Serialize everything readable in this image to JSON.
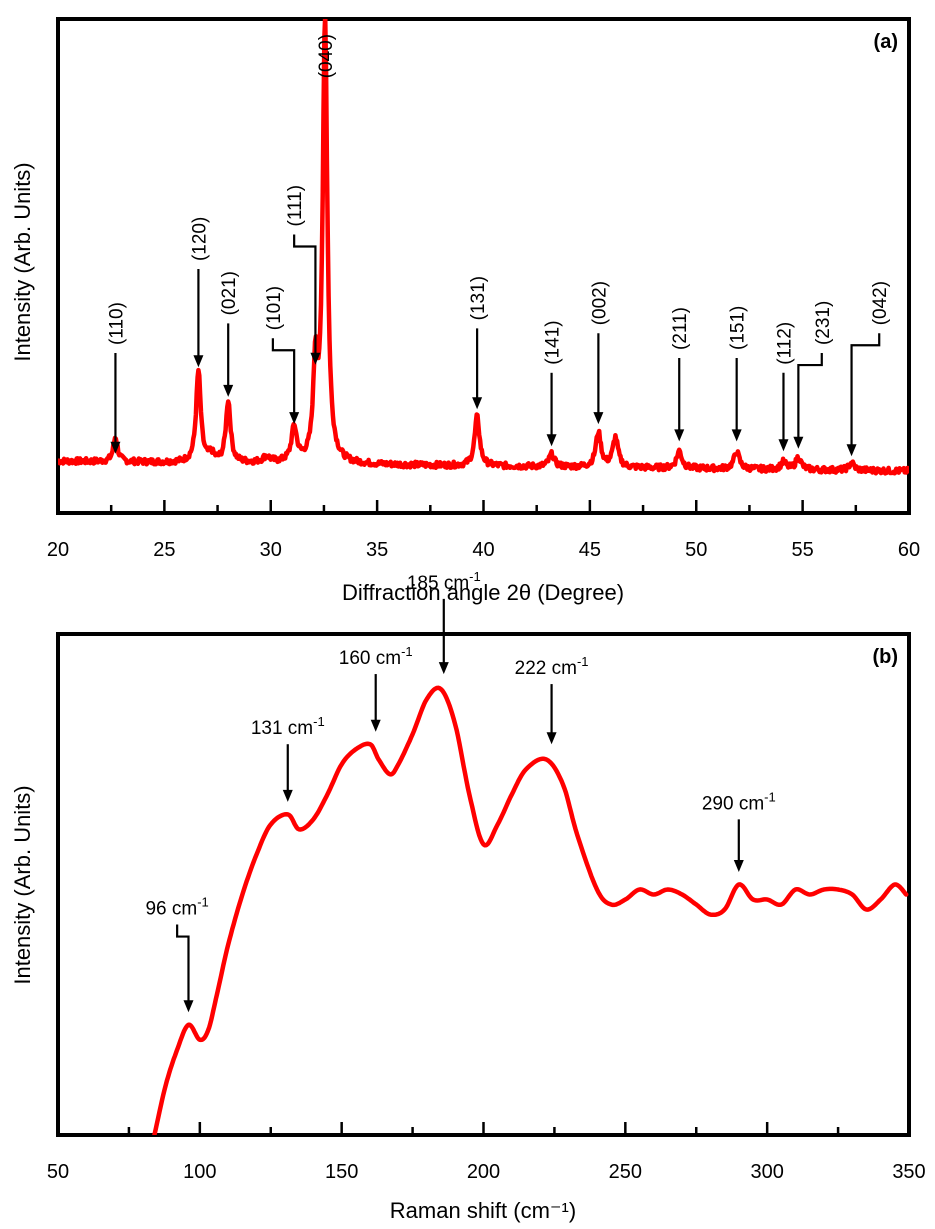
{
  "chart_data": [
    {
      "panel": "(a)",
      "type": "line",
      "title": "",
      "xlabel": "Diffraction angle 2θ (Degree)",
      "ylabel": "Intensity (Arb. Units)",
      "xlim": [
        20,
        60
      ],
      "ylim": [
        0,
        100
      ],
      "x_ticks": [
        "20",
        "25",
        "30",
        "35",
        "40",
        "45",
        "50",
        "55",
        "60"
      ],
      "grid": false,
      "legend": "none",
      "color": "#ff0000",
      "baseline": 10.5,
      "baseline_end": 8.5,
      "noise": 0.6,
      "peaks": [
        {
          "x": 22.7,
          "h": 5,
          "w": 0.12
        },
        {
          "x": 26.6,
          "h": 18.5,
          "w": 0.13
        },
        {
          "x": 27.2,
          "h": 1.5,
          "w": 0.15
        },
        {
          "x": 28.0,
          "h": 12.5,
          "w": 0.13
        },
        {
          "x": 29.8,
          "h": 1.2,
          "w": 0.2
        },
        {
          "x": 31.1,
          "h": 7,
          "w": 0.15
        },
        {
          "x": 32.1,
          "h": 19,
          "w": 0.12
        },
        {
          "x": 32.55,
          "h": 90,
          "w": 0.13
        },
        {
          "x": 39.7,
          "h": 10,
          "w": 0.14
        },
        {
          "x": 43.2,
          "h": 2.5,
          "w": 0.15
        },
        {
          "x": 45.4,
          "h": 7,
          "w": 0.15
        },
        {
          "x": 46.2,
          "h": 6,
          "w": 0.15
        },
        {
          "x": 49.2,
          "h": 3.5,
          "w": 0.15
        },
        {
          "x": 51.9,
          "h": 3.5,
          "w": 0.15
        },
        {
          "x": 54.1,
          "h": 1.5,
          "w": 0.15
        },
        {
          "x": 54.8,
          "h": 2.5,
          "w": 0.15
        },
        {
          "x": 57.3,
          "h": 1.5,
          "w": 0.15
        }
      ],
      "annotations": [
        {
          "text": "(110)",
          "x": 22.7,
          "arrow_y": 12,
          "text_y": 34,
          "elbow_x": null
        },
        {
          "text": "(120)",
          "x": 26.6,
          "arrow_y": 29.5,
          "text_y": 51,
          "elbow_x": null
        },
        {
          "text": "(021)",
          "x": 28.0,
          "arrow_y": 23.5,
          "text_y": 40,
          "elbow_x": null
        },
        {
          "text": "(101)",
          "x": 31.1,
          "arrow_y": 18,
          "text_y": 37,
          "elbow_x": 30.1
        },
        {
          "text": "(111)",
          "x": 32.1,
          "arrow_y": 30,
          "text_y": 58,
          "elbow_x": 31.1
        },
        {
          "text": "(040)",
          "x": 32.55,
          "arrow_y": null,
          "text_y": 88,
          "elbow_x": null
        },
        {
          "text": "(131)",
          "x": 39.7,
          "arrow_y": 21,
          "text_y": 39,
          "elbow_x": null
        },
        {
          "text": "(141)",
          "x": 43.2,
          "arrow_y": 13.5,
          "text_y": 30,
          "elbow_x": null
        },
        {
          "text": "(002)",
          "x": 45.4,
          "arrow_y": 18,
          "text_y": 38,
          "elbow_x": null
        },
        {
          "text": "(211)",
          "x": 49.2,
          "arrow_y": 14.5,
          "text_y": 33,
          "elbow_x": null
        },
        {
          "text": "(151)",
          "x": 51.9,
          "arrow_y": 14.5,
          "text_y": 33,
          "elbow_x": null
        },
        {
          "text": "(112)",
          "x": 54.1,
          "arrow_y": 12.5,
          "text_y": 30,
          "elbow_x": null
        },
        {
          "text": "(231)",
          "x": 54.8,
          "arrow_y": 13,
          "text_y": 34,
          "elbow_x": 55.9
        },
        {
          "text": "(042)",
          "x": 57.3,
          "arrow_y": 11.5,
          "text_y": 38,
          "elbow_x": 58.6
        }
      ]
    },
    {
      "panel": "(b)",
      "type": "line",
      "title": "",
      "xlabel": "Raman shift (cm⁻¹)",
      "ylabel": "Intensity (Arb. Units)",
      "xlim": [
        50,
        350
      ],
      "ylim": [
        0,
        100
      ],
      "x_ticks": [
        "50",
        "100",
        "150",
        "200",
        "250",
        "300",
        "350"
      ],
      "grid": false,
      "legend": "none",
      "color": "#ff0000",
      "x": [
        84,
        88,
        92,
        96,
        100,
        103,
        106,
        110,
        115,
        120,
        125,
        131,
        135,
        140,
        145,
        150,
        155,
        160,
        163,
        167,
        170,
        175,
        180,
        185,
        190,
        195,
        200,
        205,
        210,
        215,
        222,
        228,
        233,
        240,
        245,
        250,
        255,
        260,
        265,
        270,
        275,
        280,
        285,
        290,
        295,
        300,
        305,
        310,
        315,
        320,
        325,
        330,
        335,
        340,
        345,
        349
      ],
      "y": [
        0,
        10,
        17,
        22,
        19,
        21,
        28,
        38,
        48,
        56,
        62,
        64,
        61,
        63,
        68,
        74,
        77,
        78,
        75,
        72,
        74,
        80,
        87,
        89,
        82,
        68,
        58,
        62,
        68,
        73,
        75,
        70,
        60,
        49,
        46,
        47,
        49,
        48,
        49,
        48,
        46,
        44,
        45,
        50,
        47,
        47,
        46,
        49,
        48,
        49,
        49,
        48,
        45,
        47,
        50,
        48
      ],
      "annotations": [
        {
          "text": "96 cm",
          "sup": "-1",
          "x": 96,
          "arrow_y": 24.5,
          "text_y": 44,
          "elbow_x": 92
        },
        {
          "text": "131 cm",
          "sup": "-1",
          "x": 131,
          "arrow_y": 66.5,
          "text_y": 80,
          "elbow_x": null
        },
        {
          "text": "160 cm",
          "sup": "-1",
          "x": 162,
          "arrow_y": 80.5,
          "text_y": 94,
          "elbow_x": null
        },
        {
          "text": "185 cm",
          "sup": "-1",
          "x": 186,
          "arrow_y": 92,
          "text_y": 109,
          "elbow_x": null
        },
        {
          "text": "222 cm",
          "sup": "-1",
          "x": 224,
          "arrow_y": 78,
          "text_y": 92,
          "elbow_x": null
        },
        {
          "text": "290 cm",
          "sup": "-1",
          "x": 290,
          "arrow_y": 52.5,
          "text_y": 65,
          "elbow_x": null
        }
      ]
    }
  ]
}
